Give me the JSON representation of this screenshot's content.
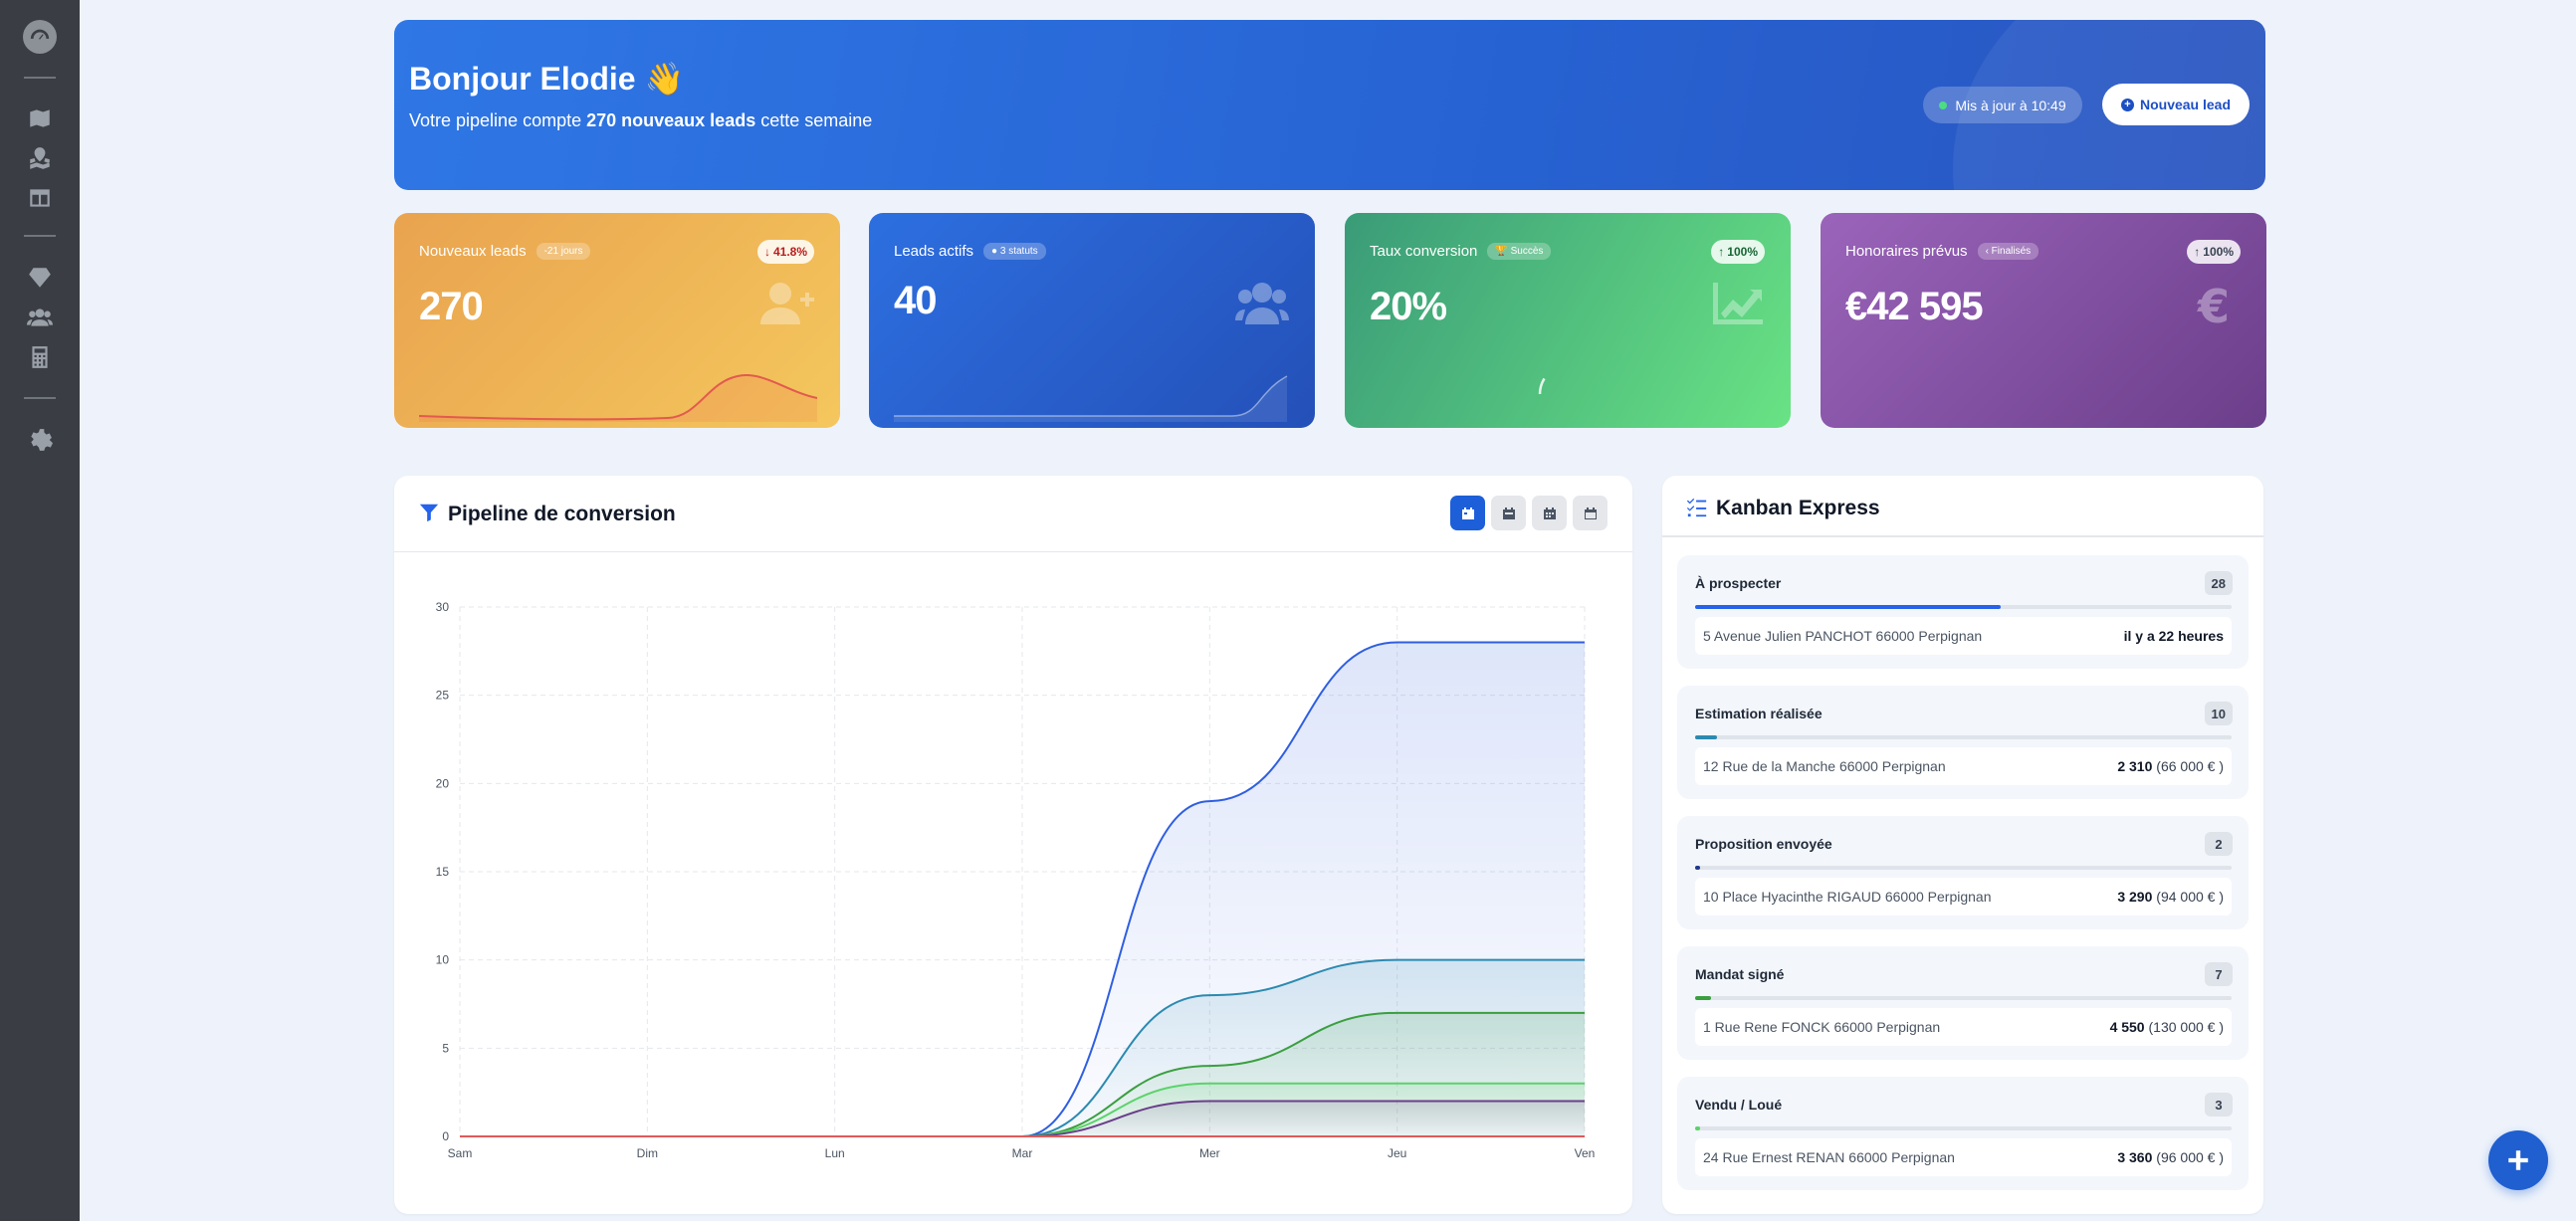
{
  "colors": {
    "accent": "#2563eb",
    "orange": "#e9a34f",
    "blue": "#2d6fe0",
    "green": "#3a9b78",
    "purple": "#9a64ba"
  },
  "sidebar": {
    "icons": [
      "dashboard-icon",
      "map-icon",
      "map-location-icon",
      "table-layout-icon",
      "gem-icon",
      "users-icon",
      "calculator-icon",
      "gear-icon"
    ]
  },
  "hero": {
    "greeting": "Bonjour Elodie 👋",
    "sub_prefix": "Votre pipeline compte",
    "sub_highlight": "270 nouveaux leads",
    "sub_suffix": "cette semaine",
    "updated": "Mis à jour à 10:49",
    "new_lead_label": "Nouveau lead"
  },
  "stats": [
    {
      "label": "Nouveaux leads",
      "badge": "-21 jours",
      "value": "270",
      "trend": "41.8%",
      "trend_dir": "down",
      "icon": "user-plus-icon"
    },
    {
      "label": "Leads actifs",
      "badge": "3 statuts",
      "value": "40",
      "trend": "",
      "trend_dir": "",
      "icon": "users-icon"
    },
    {
      "label": "Taux conversion",
      "badge": "Succès",
      "value": "20%",
      "trend": "100%",
      "trend_dir": "up",
      "icon": "chart-line-icon",
      "gauge": 20
    },
    {
      "label": "Honoraires prévus",
      "badge": "Finalisés",
      "value": "€42 595",
      "trend": "100%",
      "trend_dir": "up",
      "icon": "euro-icon"
    }
  ],
  "pipeline": {
    "title": "Pipeline de conversion",
    "range_buttons": [
      "calendar-day-icon",
      "calendar-week-icon",
      "calendar-icon",
      "calendar-alt-icon"
    ],
    "active_range": 0
  },
  "chart_data": {
    "type": "area",
    "categories": [
      "Sam",
      "Dim",
      "Lun",
      "Mar",
      "Mer",
      "Jeu",
      "Ven"
    ],
    "ylim": [
      0,
      30
    ],
    "yticks": [
      0,
      5,
      10,
      15,
      20,
      25,
      30
    ],
    "grid": true,
    "series": [
      {
        "values": [
          0,
          0,
          0,
          0,
          19,
          28,
          28
        ],
        "color": "#2f5fe0"
      },
      {
        "values": [
          0,
          0,
          0,
          0,
          8,
          10,
          10
        ],
        "color": "#2c8ab0"
      },
      {
        "values": [
          0,
          0,
          0,
          0,
          4,
          7,
          7
        ],
        "color": "#3a9f3f"
      },
      {
        "values": [
          0,
          0,
          0,
          0,
          3,
          3,
          3
        ],
        "color": "#5ad36a"
      },
      {
        "values": [
          0,
          0,
          0,
          0,
          2,
          2,
          2
        ],
        "color": "#6b3e8a"
      },
      {
        "values": [
          0,
          0,
          0,
          0,
          0,
          0,
          0
        ],
        "color": "#e05a5a"
      }
    ]
  },
  "kanban": {
    "title": "Kanban Express",
    "columns": [
      {
        "name": "À prospecter",
        "count": "28",
        "progress": 0.57,
        "color": "#2563eb",
        "address": "5 Avenue Julien PANCHOT 66000 Perpignan",
        "value_bold": "il y a 22 heures",
        "value_rest": ""
      },
      {
        "name": "Estimation réalisée",
        "count": "10",
        "progress": 0.04,
        "color": "#2c8ab0",
        "address": "12 Rue de la Manche 66000 Perpignan",
        "value_bold": "2 310",
        "value_rest": " (66 000 € )"
      },
      {
        "name": "Proposition envoyée",
        "count": "2",
        "progress": 0.01,
        "color": "#1e3a8a",
        "address": "10 Place Hyacinthe RIGAUD 66000 Perpignan",
        "value_bold": "3 290",
        "value_rest": " (94 000 € )"
      },
      {
        "name": "Mandat signé",
        "count": "7",
        "progress": 0.03,
        "color": "#3a9f3f",
        "address": "1 Rue Rene FONCK 66000 Perpignan",
        "value_bold": "4 550",
        "value_rest": " (130 000 € )"
      },
      {
        "name": "Vendu / Loué",
        "count": "3",
        "progress": 0.01,
        "color": "#5ad36a",
        "address": "24 Rue Ernest RENAN 66000 Perpignan",
        "value_bold": "3 360",
        "value_rest": " (96 000 € )"
      }
    ]
  },
  "fab_icon": "plus-icon"
}
